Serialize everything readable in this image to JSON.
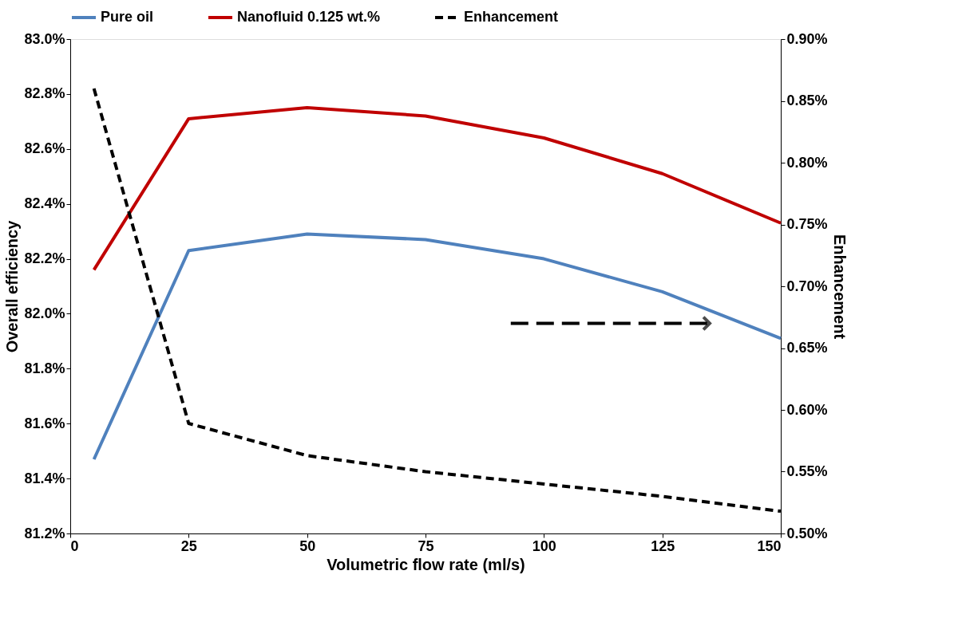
{
  "chart_data": {
    "type": "line",
    "xlabel": "Volumetric flow rate (ml/s)",
    "ylabel": "Overall efficiency",
    "y2label": "Enhancement",
    "x": [
      5,
      25,
      50,
      75,
      100,
      125,
      150
    ],
    "series": [
      {
        "name": "Pure oil",
        "color": "#4f81bd",
        "values": [
          81.47,
          82.23,
          82.29,
          82.27,
          82.2,
          82.08,
          81.91
        ]
      },
      {
        "name": "Nanofluid 0.125 wt.%",
        "color": "#c00000",
        "values": [
          82.16,
          82.71,
          82.75,
          82.72,
          82.64,
          82.51,
          82.33
        ]
      },
      {
        "name": "Enhancement",
        "color": "#000000",
        "axis": "y2",
        "line_style": "dashed",
        "values": [
          0.86,
          0.589,
          0.563,
          0.55,
          0.54,
          0.53,
          0.518
        ]
      }
    ],
    "xlim": [
      0,
      150
    ],
    "xticks": [
      0,
      25,
      50,
      75,
      100,
      125,
      150
    ],
    "ylim": [
      81.2,
      83.0
    ],
    "yticks": [
      {
        "value": 81.2,
        "label": "81.2%"
      },
      {
        "value": 81.4,
        "label": "81.4%"
      },
      {
        "value": 81.6,
        "label": "81.6%"
      },
      {
        "value": 81.8,
        "label": "81.8%"
      },
      {
        "value": 82.0,
        "label": "82.0%"
      },
      {
        "value": 82.2,
        "label": "82.2%"
      },
      {
        "value": 82.4,
        "label": "82.4%"
      },
      {
        "value": 82.6,
        "label": "82.6%"
      },
      {
        "value": 82.8,
        "label": "82.8%"
      },
      {
        "value": 83.0,
        "label": "83.0%"
      }
    ],
    "y2lim": [
      0.5,
      0.9
    ],
    "y2ticks": [
      {
        "value": 0.5,
        "label": "0.50%"
      },
      {
        "value": 0.55,
        "label": "0.55%"
      },
      {
        "value": 0.6,
        "label": "0.60%"
      },
      {
        "value": 0.65,
        "label": "0.65%"
      },
      {
        "value": 0.7,
        "label": "0.70%"
      },
      {
        "value": 0.75,
        "label": "0.75%"
      },
      {
        "value": 0.8,
        "label": "0.80%"
      },
      {
        "value": 0.85,
        "label": "0.85%"
      },
      {
        "value": 0.9,
        "label": "0.90%"
      }
    ],
    "grid": false,
    "legend": "top",
    "marker": "none",
    "line_style": "solid"
  }
}
